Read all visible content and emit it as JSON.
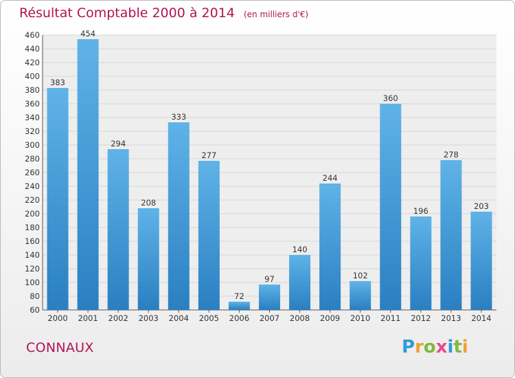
{
  "chart_data": {
    "type": "bar",
    "title": "Résultat Comptable 2000 à 2014",
    "subtitle": "(en milliers d'€)",
    "categories": [
      "2000",
      "2001",
      "2002",
      "2003",
      "2004",
      "2005",
      "2006",
      "2007",
      "2008",
      "2009",
      "2010",
      "2011",
      "2012",
      "2013",
      "2014"
    ],
    "values": [
      383,
      454,
      294,
      208,
      333,
      277,
      72,
      97,
      140,
      244,
      102,
      360,
      196,
      278,
      203
    ],
    "ylim": [
      60,
      460
    ],
    "ytick_step": 20,
    "grid": true,
    "xlabel": "",
    "ylabel": ""
  },
  "commune": "CONNAUX",
  "logo": {
    "letters": [
      "P",
      "r",
      "o",
      "x",
      "i",
      "t",
      "i"
    ],
    "colors": [
      "#2f9bd8",
      "#f0a22e",
      "#7dbb3b",
      "#e84a8a",
      "#2f9bd8",
      "#7dbb3b",
      "#f0a22e"
    ]
  },
  "colors": {
    "title": "#b01453",
    "bar_dark": "#2a7fc1",
    "bar_light": "#5fb3e8",
    "grid": "#d7d7d7"
  }
}
